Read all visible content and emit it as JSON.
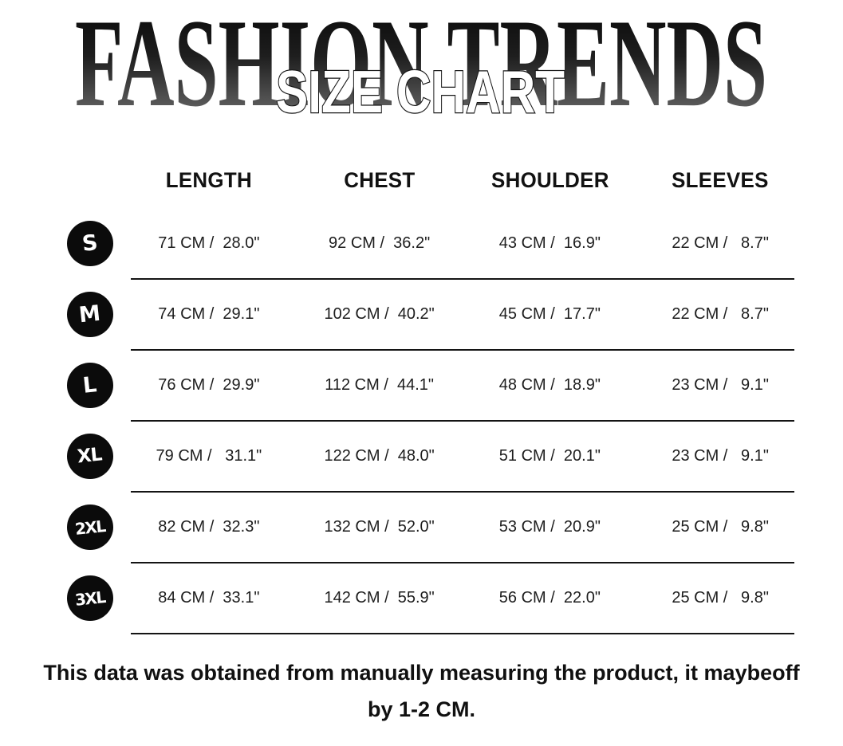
{
  "header": {
    "brand": "FASHION TRENDS",
    "subtitle": "SIZE CHART"
  },
  "table": {
    "columns": [
      "LENGTH",
      "CHEST",
      "SHOULDER",
      "SLEEVES"
    ],
    "rows": [
      {
        "size": "S",
        "values": [
          "71 CM /  28.0\"",
          "92 CM /  36.2\"",
          "43 CM /  16.9\"",
          "22 CM /   8.7\""
        ]
      },
      {
        "size": "M",
        "values": [
          "74 CM /  29.1\"",
          "102 CM /  40.2\"",
          "45 CM /  17.7\"",
          "22 CM /   8.7\""
        ]
      },
      {
        "size": "L",
        "values": [
          "76 CM /  29.9\"",
          "112 CM /  44.1\"",
          "48 CM /  18.9\"",
          "23 CM /   9.1\""
        ]
      },
      {
        "size": "XL",
        "values": [
          "79 CM /   31.1\"",
          "122 CM /  48.0\"",
          "51 CM /  20.1\"",
          "23 CM /   9.1\""
        ]
      },
      {
        "size": "2XL",
        "values": [
          "82 CM /  32.3\"",
          "132 CM /  52.0\"",
          "53 CM /  20.9\"",
          "25 CM /   9.8\""
        ]
      },
      {
        "size": "3XL",
        "values": [
          "84 CM /  33.1\"",
          "142 CM /  55.9\"",
          "56 CM /  22.0\"",
          "25 CM /   9.8\""
        ]
      }
    ]
  },
  "footer": {
    "line1": "This data was obtained from manually measuring the product, it maybeoff",
    "line2": "by 1-2 CM."
  },
  "colors": {
    "text": "#1d1d1d",
    "badge_background": "#0b0b0b",
    "badge_text": "#ffffff",
    "divider": "#141414",
    "title_gradient_top": "#050505",
    "title_gradient_bottom": "#7a7a7a"
  }
}
